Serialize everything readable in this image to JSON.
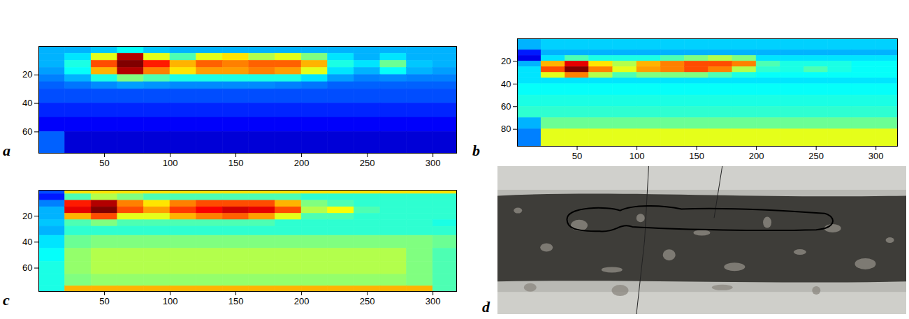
{
  "chart_data": [
    {
      "type": "heatmap",
      "panel_label": "a",
      "xlim": [
        0,
        318
      ],
      "ylim": [
        75,
        0
      ],
      "xticks": [
        50,
        100,
        150,
        200,
        250,
        300
      ],
      "yticks": [
        20,
        40,
        60
      ],
      "zlim": [
        0,
        1
      ],
      "x_bins": [
        0,
        20,
        40,
        60,
        80,
        100,
        120,
        140,
        160,
        180,
        200,
        220,
        240,
        260,
        280,
        300,
        318
      ],
      "y_bins": [
        0,
        5,
        10,
        15,
        20,
        25,
        30,
        40,
        50,
        60,
        75
      ],
      "cells": [
        [
          0.3,
          0.3,
          0.32,
          0.38,
          0.32,
          0.3,
          0.3,
          0.3,
          0.3,
          0.3,
          0.3,
          0.3,
          0.3,
          0.3,
          0.3,
          0.3
        ],
        [
          0.3,
          0.35,
          0.6,
          0.95,
          0.6,
          0.45,
          0.6,
          0.65,
          0.55,
          0.6,
          0.5,
          0.35,
          0.3,
          0.35,
          0.3,
          0.3
        ],
        [
          0.3,
          0.4,
          0.8,
          1.0,
          0.85,
          0.7,
          0.78,
          0.75,
          0.78,
          0.78,
          0.7,
          0.4,
          0.35,
          0.48,
          0.32,
          0.3
        ],
        [
          0.28,
          0.38,
          0.7,
          0.95,
          0.75,
          0.65,
          0.72,
          0.72,
          0.75,
          0.72,
          0.6,
          0.35,
          0.3,
          0.38,
          0.3,
          0.28
        ],
        [
          0.25,
          0.3,
          0.4,
          0.5,
          0.45,
          0.4,
          0.4,
          0.4,
          0.4,
          0.4,
          0.35,
          0.28,
          0.25,
          0.26,
          0.25,
          0.25
        ],
        [
          0.22,
          0.24,
          0.26,
          0.28,
          0.27,
          0.26,
          0.26,
          0.26,
          0.26,
          0.25,
          0.24,
          0.22,
          0.22,
          0.22,
          0.22,
          0.22
        ],
        [
          0.2,
          0.2,
          0.2,
          0.2,
          0.2,
          0.2,
          0.2,
          0.2,
          0.2,
          0.2,
          0.2,
          0.2,
          0.2,
          0.2,
          0.2,
          0.2
        ],
        [
          0.16,
          0.16,
          0.16,
          0.16,
          0.16,
          0.16,
          0.16,
          0.16,
          0.16,
          0.16,
          0.16,
          0.16,
          0.16,
          0.16,
          0.16,
          0.16
        ],
        [
          0.12,
          0.12,
          0.12,
          0.12,
          0.12,
          0.12,
          0.12,
          0.12,
          0.12,
          0.12,
          0.12,
          0.12,
          0.12,
          0.12,
          0.12,
          0.12
        ],
        [
          0.22,
          0.08,
          0.08,
          0.08,
          0.08,
          0.08,
          0.08,
          0.08,
          0.08,
          0.08,
          0.08,
          0.08,
          0.08,
          0.08,
          0.08,
          0.08
        ]
      ]
    },
    {
      "type": "heatmap",
      "panel_label": "b",
      "xlim": [
        0,
        318
      ],
      "ylim": [
        95,
        0
      ],
      "xticks": [
        50,
        100,
        150,
        200,
        250,
        300
      ],
      "yticks": [
        20,
        40,
        60,
        80
      ],
      "zlim": [
        0,
        1
      ],
      "x_bins": [
        0,
        20,
        40,
        60,
        80,
        100,
        120,
        140,
        160,
        180,
        200,
        220,
        240,
        260,
        280,
        300,
        318
      ],
      "y_bins": [
        0,
        10,
        15,
        20,
        25,
        30,
        35,
        40,
        50,
        60,
        70,
        80,
        95
      ],
      "cells": [
        [
          0.3,
          0.33,
          0.33,
          0.33,
          0.33,
          0.33,
          0.33,
          0.33,
          0.33,
          0.33,
          0.33,
          0.33,
          0.33,
          0.33,
          0.33,
          0.33
        ],
        [
          0.15,
          0.3,
          0.3,
          0.3,
          0.3,
          0.3,
          0.3,
          0.3,
          0.3,
          0.3,
          0.3,
          0.3,
          0.3,
          0.3,
          0.3,
          0.3
        ],
        [
          0.1,
          0.35,
          0.45,
          0.4,
          0.4,
          0.4,
          0.45,
          0.5,
          0.55,
          0.5,
          0.35,
          0.35,
          0.35,
          0.35,
          0.35,
          0.35
        ],
        [
          0.3,
          0.7,
          0.9,
          0.65,
          0.55,
          0.7,
          0.75,
          0.8,
          0.8,
          0.75,
          0.45,
          0.4,
          0.4,
          0.4,
          0.38,
          0.38
        ],
        [
          0.35,
          0.8,
          1.0,
          0.75,
          0.6,
          0.72,
          0.75,
          0.8,
          0.75,
          0.55,
          0.42,
          0.4,
          0.45,
          0.4,
          0.38,
          0.38
        ],
        [
          0.35,
          0.6,
          0.75,
          0.55,
          0.45,
          0.5,
          0.5,
          0.5,
          0.45,
          0.4,
          0.38,
          0.38,
          0.38,
          0.38,
          0.38,
          0.38
        ],
        [
          0.35,
          0.35,
          0.35,
          0.35,
          0.35,
          0.35,
          0.35,
          0.35,
          0.35,
          0.35,
          0.35,
          0.35,
          0.35,
          0.35,
          0.35,
          0.35
        ],
        [
          0.38,
          0.38,
          0.38,
          0.38,
          0.38,
          0.38,
          0.38,
          0.38,
          0.38,
          0.38,
          0.38,
          0.38,
          0.38,
          0.38,
          0.38,
          0.38
        ],
        [
          0.4,
          0.4,
          0.4,
          0.4,
          0.4,
          0.4,
          0.4,
          0.4,
          0.4,
          0.4,
          0.4,
          0.4,
          0.4,
          0.4,
          0.4,
          0.4
        ],
        [
          0.42,
          0.42,
          0.42,
          0.42,
          0.42,
          0.42,
          0.42,
          0.42,
          0.42,
          0.42,
          0.42,
          0.42,
          0.42,
          0.42,
          0.42,
          0.42
        ],
        [
          0.3,
          0.48,
          0.48,
          0.48,
          0.48,
          0.48,
          0.48,
          0.48,
          0.48,
          0.48,
          0.48,
          0.48,
          0.48,
          0.48,
          0.48,
          0.48
        ],
        [
          0.25,
          0.6,
          0.6,
          0.6,
          0.6,
          0.6,
          0.6,
          0.6,
          0.6,
          0.6,
          0.6,
          0.6,
          0.6,
          0.6,
          0.6,
          0.6
        ]
      ]
    },
    {
      "type": "heatmap",
      "panel_label": "c",
      "xlim": [
        0,
        318
      ],
      "ylim": [
        78,
        0
      ],
      "xticks": [
        50,
        100,
        150,
        200,
        250,
        300
      ],
      "yticks": [
        20,
        40,
        60
      ],
      "zlim": [
        0,
        1
      ],
      "x_bins": [
        0,
        20,
        40,
        60,
        80,
        100,
        120,
        140,
        160,
        180,
        200,
        220,
        240,
        260,
        280,
        300,
        318
      ],
      "y_bins": [
        0,
        3,
        8,
        13,
        18,
        23,
        28,
        35,
        45,
        55,
        65,
        74,
        78
      ],
      "cells": [
        [
          0.2,
          0.65,
          0.65,
          0.65,
          0.65,
          0.65,
          0.65,
          0.65,
          0.65,
          0.65,
          0.65,
          0.65,
          0.65,
          0.65,
          0.65,
          0.65
        ],
        [
          0.15,
          0.45,
          0.55,
          0.5,
          0.45,
          0.45,
          0.45,
          0.45,
          0.45,
          0.45,
          0.42,
          0.42,
          0.42,
          0.42,
          0.42,
          0.42
        ],
        [
          0.25,
          0.85,
          0.95,
          0.75,
          0.65,
          0.75,
          0.8,
          0.8,
          0.8,
          0.7,
          0.5,
          0.45,
          0.42,
          0.42,
          0.42,
          0.42
        ],
        [
          0.3,
          0.9,
          1.0,
          0.8,
          0.72,
          0.82,
          0.88,
          0.92,
          0.9,
          0.8,
          0.55,
          0.62,
          0.45,
          0.42,
          0.42,
          0.42
        ],
        [
          0.3,
          0.7,
          0.8,
          0.6,
          0.6,
          0.7,
          0.75,
          0.78,
          0.72,
          0.6,
          0.45,
          0.45,
          0.42,
          0.42,
          0.42,
          0.42
        ],
        [
          0.32,
          0.45,
          0.5,
          0.45,
          0.45,
          0.45,
          0.45,
          0.45,
          0.45,
          0.42,
          0.42,
          0.42,
          0.42,
          0.42,
          0.42,
          0.4
        ],
        [
          0.3,
          0.42,
          0.42,
          0.42,
          0.42,
          0.42,
          0.42,
          0.42,
          0.42,
          0.42,
          0.42,
          0.42,
          0.42,
          0.42,
          0.42,
          0.42
        ],
        [
          0.35,
          0.48,
          0.5,
          0.5,
          0.5,
          0.5,
          0.5,
          0.5,
          0.5,
          0.5,
          0.5,
          0.5,
          0.5,
          0.5,
          0.5,
          0.48
        ],
        [
          0.38,
          0.52,
          0.55,
          0.55,
          0.55,
          0.55,
          0.55,
          0.55,
          0.55,
          0.55,
          0.55,
          0.55,
          0.55,
          0.55,
          0.5,
          0.45
        ],
        [
          0.4,
          0.52,
          0.55,
          0.55,
          0.55,
          0.55,
          0.55,
          0.55,
          0.55,
          0.55,
          0.55,
          0.55,
          0.55,
          0.55,
          0.5,
          0.45
        ],
        [
          0.4,
          0.5,
          0.52,
          0.52,
          0.52,
          0.52,
          0.52,
          0.52,
          0.52,
          0.52,
          0.52,
          0.52,
          0.52,
          0.52,
          0.5,
          0.45
        ],
        [
          0.4,
          0.7,
          0.7,
          0.7,
          0.7,
          0.7,
          0.7,
          0.7,
          0.7,
          0.7,
          0.7,
          0.7,
          0.7,
          0.7,
          0.7,
          0.45
        ]
      ]
    },
    {
      "type": "image",
      "panel_label": "d"
    }
  ]
}
